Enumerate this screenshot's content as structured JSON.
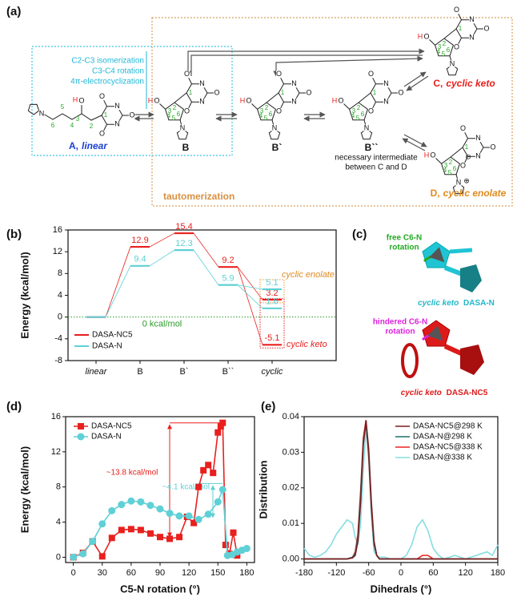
{
  "figure_a": {
    "panel_label": "(a)",
    "steps": [
      "C2-C3 isomerization",
      "C3-C4 rotation",
      "4π-electrocyclization"
    ],
    "box_label": "tautomerization",
    "note": [
      "necessary intermediate",
      "between C and D"
    ],
    "molecules": [
      {
        "label_parts": [
          "A,",
          "linear"
        ],
        "atoms": [
          "1",
          "2",
          "3",
          "4",
          "5",
          "6",
          "O",
          "O",
          "O",
          "O",
          "N",
          "N",
          "N"
        ],
        "extra": [
          "H"
        ]
      },
      {
        "label_parts": [
          "B"
        ],
        "atoms": [
          "1",
          "2",
          "3",
          "4",
          "5",
          "6",
          "O",
          "O",
          "O",
          "O",
          "N",
          "N",
          "N"
        ],
        "extra": [
          "H"
        ]
      },
      {
        "label_parts": [
          "B`"
        ],
        "atoms": [
          "1",
          "2",
          "3",
          "4",
          "5",
          "6",
          "O",
          "O",
          "O",
          "O",
          "N",
          "N",
          "N"
        ],
        "extra": [
          "H"
        ]
      },
      {
        "label_parts": [
          "B``"
        ],
        "atoms": [
          "1",
          "2",
          "3",
          "4",
          "5",
          "6",
          "O",
          "O",
          "O",
          "O",
          "N",
          "N",
          "N"
        ],
        "extra": [
          "H"
        ]
      },
      {
        "label_parts": [
          "C,",
          "cyclic keto"
        ],
        "atoms": [
          "1",
          "2",
          "3",
          "4",
          "5",
          "6",
          "O",
          "O",
          "O",
          "O",
          "N",
          "N",
          "N"
        ],
        "extra": [
          "H"
        ]
      },
      {
        "label_parts": [
          "D,",
          "cyclic enolate"
        ],
        "atoms": [
          "1",
          "2",
          "3",
          "4",
          "5",
          "6",
          "O",
          "O",
          "O",
          "O",
          "N",
          "N",
          "N"
        ],
        "extra": [
          "H",
          "⊖",
          "⊕"
        ]
      }
    ]
  },
  "figure_c": {
    "panel_label": "(c)",
    "top_annotation": [
      "free C6-N",
      "rotation"
    ],
    "top_caption": [
      "cyclic keto",
      "DASA-N"
    ],
    "bottom_annotation": [
      "hindered C6-N",
      "rotation"
    ],
    "bottom_caption": [
      "cyclic keto",
      "DASA-NC5"
    ]
  },
  "chart_data": [
    {
      "type": "energy_levels",
      "panel_label": "(b)",
      "ylabel": "Energy (kcal/mol)",
      "categories": [
        "linear",
        "B",
        "B`",
        "B``",
        "cyclic"
      ],
      "ylim": [
        -8,
        16
      ],
      "yticks": [
        -8,
        -4,
        0,
        4,
        8,
        12,
        16
      ],
      "series": [
        {
          "name": "DASA-NC5",
          "color": "#e8201e",
          "values": [
            0,
            12.9,
            15.4,
            9.2,
            3.2
          ],
          "cyclic_keto": -5.1
        },
        {
          "name": "DASA-N",
          "color": "#5fd0d6",
          "values": [
            0,
            9.4,
            12.3,
            5.9,
            5.1
          ],
          "cyclic_keto": 1.6
        }
      ],
      "cyclic_enolate_label": "cyclic enolate",
      "cyclic_keto_label": "cyclic keto",
      "zero_label": "0 kcal/mol",
      "legend": "lower left"
    },
    {
      "type": "line",
      "panel_label": "(d)",
      "xlabel": "C5-N rotation (°)",
      "ylabel": "Energy (kcal/mol)",
      "xlim": [
        -8,
        188
      ],
      "xticks": [
        0,
        30,
        60,
        90,
        120,
        150,
        180
      ],
      "ylim": [
        -0.6,
        16
      ],
      "yticks": [
        0,
        4,
        8,
        12,
        16
      ],
      "series": [
        {
          "name": "DASA-NC5",
          "color": "#e8201e",
          "marker": "square",
          "x": [
            0,
            10,
            20,
            30,
            40,
            50,
            60,
            70,
            80,
            90,
            100,
            110,
            118,
            125,
            130,
            135,
            140,
            145,
            150,
            153,
            155,
            158,
            162,
            166,
            170
          ],
          "values": [
            0,
            0.5,
            1.8,
            0.1,
            2.2,
            3.1,
            3.2,
            3.1,
            2.7,
            2.3,
            2.1,
            2.3,
            4.6,
            3.9,
            8.0,
            9.9,
            10.5,
            9.6,
            14.2,
            14.9,
            15.3,
            1.4,
            0.4,
            2.8,
            0.2
          ]
        },
        {
          "name": "DASA-N",
          "color": "#5fd0d6",
          "marker": "circle",
          "x": [
            0,
            10,
            20,
            30,
            40,
            50,
            60,
            70,
            80,
            90,
            100,
            110,
            120,
            130,
            140,
            150,
            155,
            160,
            165,
            170,
            175,
            180
          ],
          "values": [
            0,
            0.4,
            1.8,
            3.8,
            5.3,
            6.0,
            6.4,
            6.3,
            5.9,
            5.5,
            5.0,
            4.7,
            4.7,
            4.3,
            4.9,
            6.3,
            7.7,
            0.2,
            0.3,
            0.6,
            0.8,
            1.0
          ]
        }
      ],
      "annotations": [
        "~13.8 kcal/mol",
        "~4.1 kcal/mol"
      ],
      "legend": "upper left"
    },
    {
      "type": "line",
      "panel_label": "(e)",
      "xlabel": "Dihedrals (°)",
      "ylabel": "Distribution",
      "xlim": [
        -180,
        180
      ],
      "xticks": [
        -180,
        -120,
        -60,
        0,
        60,
        120,
        180
      ],
      "ylim": [
        -0.001,
        0.04
      ],
      "yticks": [
        {
          "value": 0,
          "label": "0.00"
        },
        0.01,
        0.02,
        0.03,
        0.04
      ],
      "x": [
        -180,
        -170,
        -160,
        -150,
        -140,
        -130,
        -120,
        -110,
        -100,
        -90,
        -85,
        -80,
        -75,
        -70,
        -65,
        -60,
        -55,
        -50,
        -45,
        -40,
        -30,
        -20,
        -10,
        0,
        10,
        20,
        30,
        40,
        50,
        60,
        70,
        80,
        90,
        100,
        120,
        140,
        160,
        170,
        180
      ],
      "series": [
        {
          "name": "DASA-N@338 K",
          "color": "#86dde2",
          "values": [
            0.003,
            0.001,
            0.0005,
            0.001,
            0.002,
            0.004,
            0.007,
            0.009,
            0.011,
            0.01,
            0.006,
            0.004,
            0.01,
            0.025,
            0.037,
            0.028,
            0.012,
            0.002,
            0.001,
            0.0005,
            0.0005,
            0,
            0,
            0,
            0.001,
            0.004,
            0.009,
            0.011,
            0.008,
            0.003,
            0.001,
            0,
            0.0005,
            0.001,
            0,
            0.001,
            0.002,
            0.001,
            0.004
          ]
        },
        {
          "name": "DASA-NC5@338 K",
          "color": "#ee2222",
          "values": [
            0,
            0,
            0,
            0,
            0,
            0,
            0,
            0,
            0,
            0.0005,
            0.002,
            0.007,
            0.019,
            0.034,
            0.039,
            0.029,
            0.014,
            0.004,
            0.001,
            0,
            0,
            0,
            0,
            0,
            0,
            0,
            0,
            0.001,
            0.001,
            0,
            0,
            0,
            0,
            0,
            0,
            0,
            0,
            0,
            0
          ]
        },
        {
          "name": "DASA-N@298 K",
          "color": "#1f6f6a",
          "values": [
            0,
            0,
            0,
            0,
            0,
            0,
            0,
            0,
            0,
            0.0005,
            0.0015,
            0.006,
            0.018,
            0.033,
            0.038,
            0.03,
            0.015,
            0.004,
            0.001,
            0,
            0,
            0,
            0,
            0,
            0,
            0,
            0,
            0,
            0,
            0,
            0,
            0,
            0,
            0,
            0,
            0,
            0,
            0,
            0
          ]
        },
        {
          "name": "DASA-NC5@298 K",
          "color": "#7a1f1f",
          "values": [
            0,
            0,
            0,
            0,
            0,
            0,
            0,
            0,
            0,
            0.0003,
            0.001,
            0.005,
            0.016,
            0.032,
            0.039,
            0.031,
            0.016,
            0.005,
            0.001,
            0,
            0,
            0,
            0,
            0,
            0,
            0,
            0,
            0,
            0,
            0,
            0,
            0,
            0,
            0,
            0,
            0,
            0,
            0,
            0
          ]
        }
      ],
      "legend_order": [
        3,
        2,
        1,
        0
      ],
      "legend": "upper right"
    }
  ]
}
